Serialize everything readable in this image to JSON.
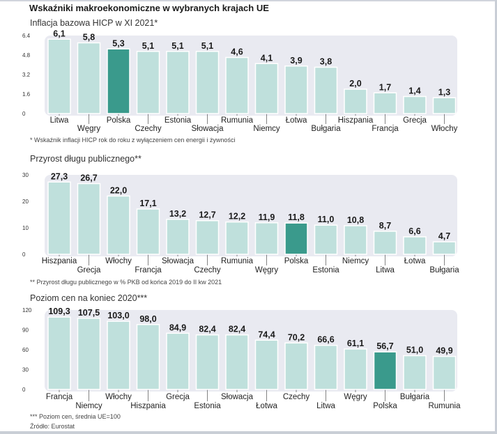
{
  "title": "Wskaźniki makroekonomiczne w wybranych krajach UE",
  "colors": {
    "bar": "#bfe0dc",
    "bar_stroke": "#ffffff",
    "highlight": "#3a9a8c",
    "panel": "#e9eaf1",
    "axis_text": "#333333",
    "value_text": "#1a1a1a"
  },
  "source": "Źródło: Eurostat",
  "chart_data": [
    {
      "type": "bar",
      "title": "Inflacja bazowa HICP w XI 2021*",
      "footnote": "* Wskaźnik inflacji HICP rok do roku z wyłączeniem cen energii i żywności",
      "categories": [
        "Litwa",
        "Węgry",
        "Polska",
        "Czechy",
        "Estonia",
        "Słowacja",
        "Rumunia",
        "Niemcy",
        "Łotwa",
        "Bułgaria",
        "Hiszpania",
        "Francja",
        "Grecja",
        "Włochy"
      ],
      "values": [
        6.1,
        5.8,
        5.3,
        5.1,
        5.1,
        5.1,
        4.6,
        4.1,
        3.9,
        3.8,
        2.0,
        1.7,
        1.4,
        1.3
      ],
      "value_labels": [
        "6,1",
        "5,8",
        "5,3",
        "5,1",
        "5,1",
        "5,1",
        "4,6",
        "4,1",
        "3,9",
        "3,8",
        "2,0",
        "1,7",
        "1,4",
        "1,3"
      ],
      "yticks": [
        0,
        1.6,
        3.2,
        4.8,
        6.4
      ],
      "ytick_labels": [
        "0",
        "1.6",
        "3.2",
        "4.8",
        "6.4"
      ],
      "ylim": [
        0,
        6.4
      ],
      "highlight": "Polska",
      "xlabel": "",
      "ylabel": ""
    },
    {
      "type": "bar",
      "title": "Przyrost długu publicznego**",
      "footnote": "** Przyrost długu publicznego w % PKB od końca 2019 do II kw 2021",
      "categories": [
        "Hiszpania",
        "Grecja",
        "Włochy",
        "Francja",
        "Słowacja",
        "Czechy",
        "Rumunia",
        "Węgry",
        "Polska",
        "Estonia",
        "Niemcy",
        "Litwa",
        "Łotwa",
        "Bułgaria"
      ],
      "values": [
        27.3,
        26.7,
        22.0,
        17.1,
        13.2,
        12.7,
        12.2,
        11.9,
        11.8,
        11.0,
        10.8,
        8.7,
        6.6,
        4.7
      ],
      "value_labels": [
        "27,3",
        "26,7",
        "22,0",
        "17,1",
        "13,2",
        "12,7",
        "12,2",
        "11,9",
        "11,8",
        "11,0",
        "10,8",
        "8,7",
        "6,6",
        "4,7"
      ],
      "yticks": [
        0,
        10,
        20,
        30
      ],
      "ytick_labels": [
        "0",
        "10",
        "20",
        "30"
      ],
      "ylim": [
        0,
        30
      ],
      "highlight": "Polska",
      "xlabel": "",
      "ylabel": ""
    },
    {
      "type": "bar",
      "title": "Poziom cen na koniec 2020***",
      "footnote": "*** Poziom cen, średnia UE=100",
      "categories": [
        "Francja",
        "Niemcy",
        "Włochy",
        "Hiszpania",
        "Grecja",
        "Estonia",
        "Słowacja",
        "Łotwa",
        "Czechy",
        "Litwa",
        "Węgry",
        "Polska",
        "Bułgaria",
        "Rumunia"
      ],
      "values": [
        109.3,
        107.5,
        103.0,
        98.0,
        84.9,
        82.4,
        82.4,
        74.4,
        70.2,
        66.6,
        61.1,
        56.7,
        51.0,
        49.9
      ],
      "value_labels": [
        "109,3",
        "107,5",
        "103,0",
        "98,0",
        "84,9",
        "82,4",
        "82,4",
        "74,4",
        "70,2",
        "66,6",
        "61,1",
        "56,7",
        "51,0",
        "49,9"
      ],
      "yticks": [
        0,
        30,
        60,
        90,
        120
      ],
      "ytick_labels": [
        "0",
        "30",
        "60",
        "90",
        "120"
      ],
      "ylim": [
        0,
        120
      ],
      "highlight": "Polska",
      "xlabel": "",
      "ylabel": ""
    }
  ]
}
